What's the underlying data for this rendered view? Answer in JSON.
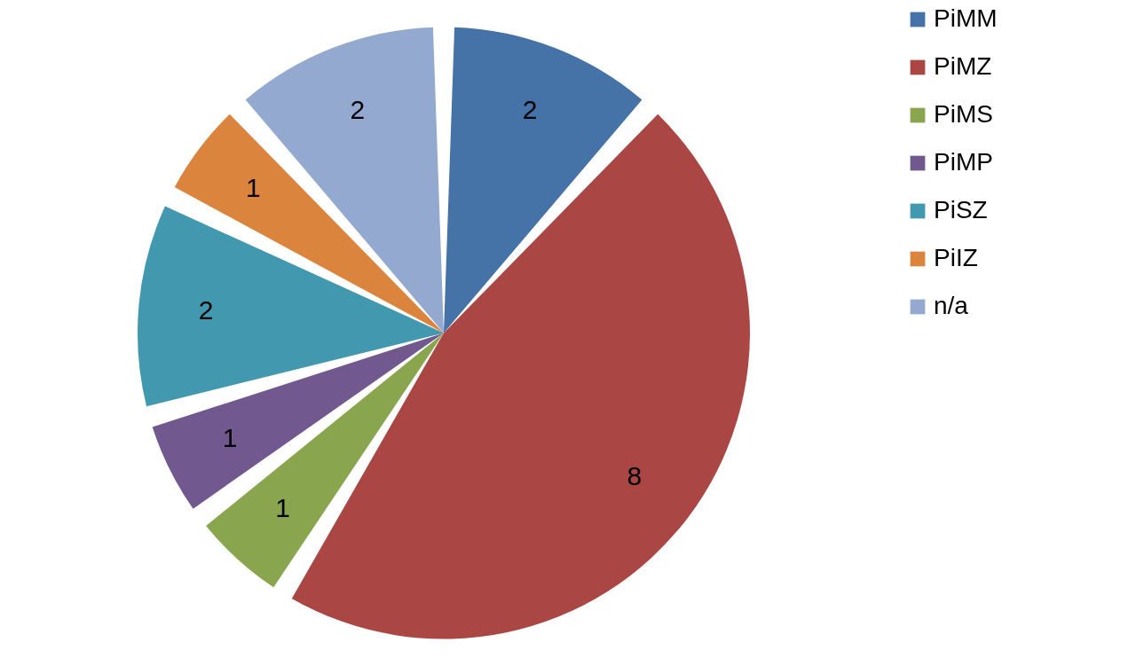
{
  "chart_data": {
    "type": "pie",
    "categories": [
      "PiMM",
      "PiMZ",
      "PiMS",
      "PiMP",
      "PiSZ",
      "PiIZ",
      "n/a"
    ],
    "values": [
      2,
      8,
      1,
      1,
      2,
      1,
      2
    ],
    "colors": [
      "#4572a7",
      "#aa4643",
      "#89a54e",
      "#71588f",
      "#4198af",
      "#db843d",
      "#93a9cf"
    ],
    "data_labels": true,
    "legend": "right"
  }
}
